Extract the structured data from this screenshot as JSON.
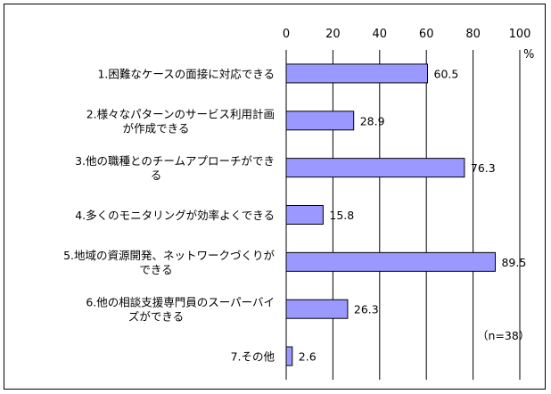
{
  "chart_data": {
    "type": "bar",
    "orientation": "horizontal",
    "title": "",
    "xlabel": "",
    "ylabel": "",
    "unit": "%",
    "xlim": [
      0,
      100
    ],
    "xticks": [
      0,
      20,
      40,
      60,
      80,
      100
    ],
    "xtick_labels": [
      "0",
      "20",
      "40",
      "60",
      "80",
      "100"
    ],
    "grid": true,
    "bar_color": "#9999ff",
    "categories": [
      [
        "1.困難なケースの面接に対応できる"
      ],
      [
        "2.様々なパターンのサービス利用計画",
        "が作成できる"
      ],
      [
        "3.他の職種とのチームアプローチができ",
        "る"
      ],
      [
        "4.多くのモニタリングが効率よくできる"
      ],
      [
        "5.地域の資源開発、ネットワークづくりが",
        "できる"
      ],
      [
        "6.他の相談支援専門員のスーパーバイ",
        "ズができる"
      ],
      [
        "7.その他"
      ]
    ],
    "values": [
      60.5,
      28.9,
      76.3,
      15.8,
      89.5,
      26.3,
      2.6
    ],
    "value_labels": [
      "60.5",
      "28.9",
      "76.3",
      "15.8",
      "89.5",
      "26.3",
      "2.6"
    ],
    "annotation": "（n=38）"
  }
}
